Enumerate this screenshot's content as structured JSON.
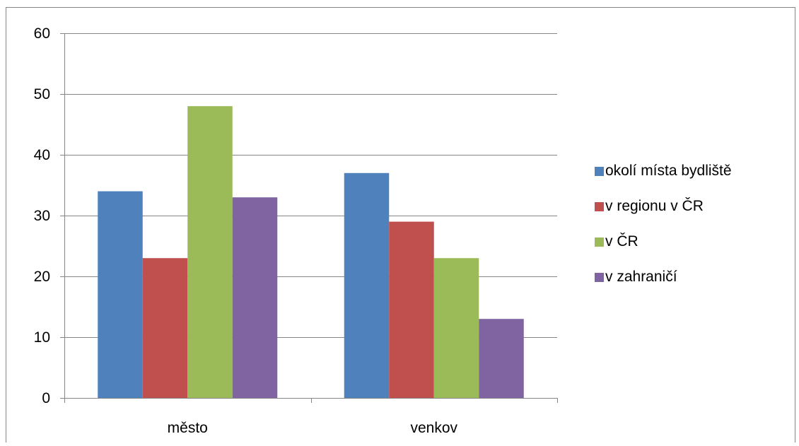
{
  "chart_data": {
    "type": "bar",
    "categories": [
      "město",
      "venkov"
    ],
    "series": [
      {
        "name": "okolí místa bydliště",
        "values": [
          34,
          37
        ],
        "color": "#4F81BD"
      },
      {
        "name": "v regionu v ČR",
        "values": [
          23,
          29
        ],
        "color": "#C0504D"
      },
      {
        "name": "v ČR",
        "values": [
          48,
          23
        ],
        "color": "#9BBB59"
      },
      {
        "name": "v zahraničí",
        "values": [
          33,
          13
        ],
        "color": "#8064A2"
      }
    ],
    "yticks": [
      "0",
      "10",
      "20",
      "30",
      "40",
      "50",
      "60"
    ],
    "ylim": [
      0,
      60
    ],
    "grid": true,
    "legend_position": "right",
    "title": "",
    "xlabel": "",
    "ylabel": ""
  }
}
